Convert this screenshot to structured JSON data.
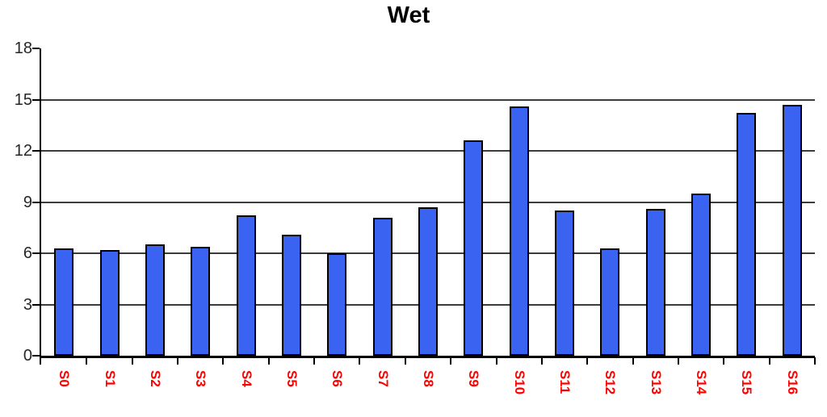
{
  "chart_data": {
    "type": "bar",
    "title": "Wet",
    "categories": [
      "S0",
      "S1",
      "S2",
      "S3",
      "S4",
      "S5",
      "S6",
      "S7",
      "S8",
      "S9",
      "S10",
      "S11",
      "S12",
      "S13",
      "S14",
      "S15",
      "S16"
    ],
    "values": [
      6.3,
      6.2,
      6.5,
      6.4,
      8.2,
      7.1,
      6.0,
      8.1,
      8.7,
      12.6,
      14.6,
      8.5,
      6.3,
      8.6,
      9.5,
      14.2,
      14.7
    ],
    "xlabel": "",
    "ylabel": "",
    "ylim": [
      0,
      18
    ],
    "yticks": [
      0,
      3,
      6,
      9,
      12,
      15,
      18
    ],
    "gridline_values": [
      3,
      6,
      9,
      12,
      15
    ],
    "grid": "horizontal",
    "legend": "none",
    "colors": {
      "bar_fill": "#3A63F2",
      "bar_border": "#000000",
      "axis": "#000000",
      "gridline": "#3C3C3C",
      "tick_label": "#262626",
      "category_label": "#FF0000",
      "title": "#000000",
      "background": "#FFFFFF"
    }
  }
}
